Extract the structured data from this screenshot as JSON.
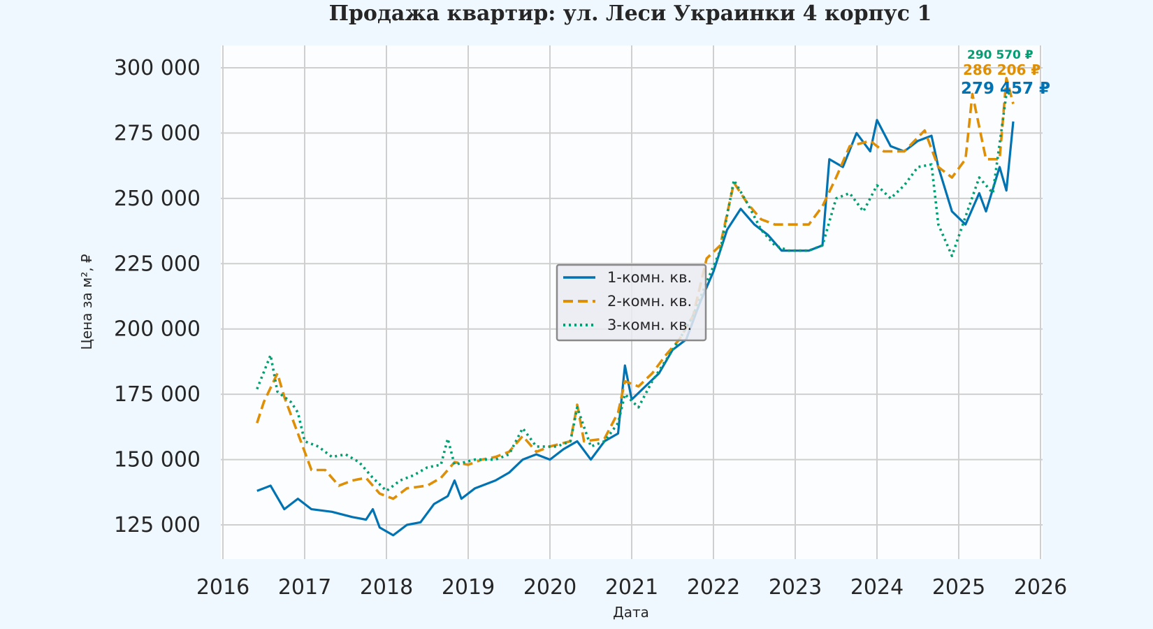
{
  "chart_data": {
    "type": "line",
    "title": "Продажа квартир: ул. Леси Украинки 4 корпус 1",
    "xlabel": "Дата",
    "ylabel": "Цена за м², ₽",
    "xlim": [
      "2016-01",
      "2026-01"
    ],
    "ylim": [
      113000,
      307000
    ],
    "x_ticks": [
      "2016",
      "2017",
      "2018",
      "2019",
      "2020",
      "2021",
      "2022",
      "2023",
      "2024",
      "2025",
      "2026"
    ],
    "y_ticks": [
      125000,
      150000,
      175000,
      200000,
      225000,
      250000,
      275000,
      300000
    ],
    "y_tick_labels": [
      "125 000",
      "150 000",
      "175 000",
      "200 000",
      "225 000",
      "250 000",
      "275 000",
      "300 000"
    ],
    "grid": true,
    "legend_position": "center",
    "series": [
      {
        "name": "1-комн. кв.",
        "color": "#0173b2",
        "style": "solid",
        "end_label": "279 457 ₽",
        "points": [
          [
            "2016-06",
            138000
          ],
          [
            "2016-08",
            140000
          ],
          [
            "2016-10",
            131000
          ],
          [
            "2016-12",
            135000
          ],
          [
            "2017-02",
            131000
          ],
          [
            "2017-05",
            130000
          ],
          [
            "2017-08",
            128000
          ],
          [
            "2017-10",
            127000
          ],
          [
            "2017-11",
            131000
          ],
          [
            "2017-12",
            124000
          ],
          [
            "2018-02",
            121000
          ],
          [
            "2018-04",
            125000
          ],
          [
            "2018-06",
            126000
          ],
          [
            "2018-08",
            133000
          ],
          [
            "2018-10",
            136000
          ],
          [
            "2018-11",
            142000
          ],
          [
            "2018-12",
            135000
          ],
          [
            "2019-02",
            139000
          ],
          [
            "2019-05",
            142000
          ],
          [
            "2019-07",
            145000
          ],
          [
            "2019-09",
            150000
          ],
          [
            "2019-11",
            152000
          ],
          [
            "2020-01",
            150000
          ],
          [
            "2020-03",
            154000
          ],
          [
            "2020-05",
            157000
          ],
          [
            "2020-07",
            150000
          ],
          [
            "2020-09",
            157000
          ],
          [
            "2020-11",
            160000
          ],
          [
            "2020-12",
            186000
          ],
          [
            "2021-01",
            173000
          ],
          [
            "2021-03",
            178000
          ],
          [
            "2021-05",
            183000
          ],
          [
            "2021-07",
            192000
          ],
          [
            "2021-09",
            196000
          ],
          [
            "2021-11",
            210000
          ],
          [
            "2022-01",
            222000
          ],
          [
            "2022-03",
            238000
          ],
          [
            "2022-05",
            246000
          ],
          [
            "2022-07",
            240000
          ],
          [
            "2022-09",
            236000
          ],
          [
            "2022-11",
            230000
          ],
          [
            "2023-01",
            230000
          ],
          [
            "2023-03",
            230000
          ],
          [
            "2023-05",
            232000
          ],
          [
            "2023-06",
            265000
          ],
          [
            "2023-08",
            262000
          ],
          [
            "2023-10",
            275000
          ],
          [
            "2023-12",
            268000
          ],
          [
            "2024-01",
            280000
          ],
          [
            "2024-03",
            270000
          ],
          [
            "2024-05",
            268000
          ],
          [
            "2024-07",
            272000
          ],
          [
            "2024-09",
            274000
          ],
          [
            "2024-10",
            262000
          ],
          [
            "2024-12",
            245000
          ],
          [
            "2025-02",
            240000
          ],
          [
            "2025-04",
            252000
          ],
          [
            "2025-05",
            245000
          ],
          [
            "2025-07",
            262000
          ],
          [
            "2025-08",
            253000
          ],
          [
            "2025-09",
            279457
          ]
        ]
      },
      {
        "name": "2-комн. кв.",
        "color": "#de8f05",
        "style": "dashed",
        "end_label": "286 206 ₽",
        "points": [
          [
            "2016-06",
            164000
          ],
          [
            "2016-07",
            172000
          ],
          [
            "2016-09",
            183000
          ],
          [
            "2016-10",
            174000
          ],
          [
            "2016-12",
            160000
          ],
          [
            "2017-02",
            146000
          ],
          [
            "2017-04",
            146000
          ],
          [
            "2017-06",
            140000
          ],
          [
            "2017-08",
            142000
          ],
          [
            "2017-10",
            143000
          ],
          [
            "2017-12",
            137000
          ],
          [
            "2018-02",
            135000
          ],
          [
            "2018-04",
            139000
          ],
          [
            "2018-07",
            140000
          ],
          [
            "2018-09",
            143000
          ],
          [
            "2018-11",
            149000
          ],
          [
            "2019-01",
            148000
          ],
          [
            "2019-03",
            150000
          ],
          [
            "2019-05",
            151000
          ],
          [
            "2019-07",
            153000
          ],
          [
            "2019-09",
            159000
          ],
          [
            "2019-11",
            153000
          ],
          [
            "2020-01",
            155000
          ],
          [
            "2020-04",
            157000
          ],
          [
            "2020-05",
            171000
          ],
          [
            "2020-06",
            157000
          ],
          [
            "2020-09",
            158000
          ],
          [
            "2020-11",
            168000
          ],
          [
            "2020-12",
            180000
          ],
          [
            "2021-02",
            178000
          ],
          [
            "2021-04",
            183000
          ],
          [
            "2021-06",
            190000
          ],
          [
            "2021-08",
            196000
          ],
          [
            "2021-10",
            205000
          ],
          [
            "2021-12",
            227000
          ],
          [
            "2022-02",
            232000
          ],
          [
            "2022-04",
            256000
          ],
          [
            "2022-06",
            248000
          ],
          [
            "2022-08",
            242000
          ],
          [
            "2022-10",
            240000
          ],
          [
            "2022-12",
            240000
          ],
          [
            "2023-03",
            240000
          ],
          [
            "2023-05",
            247000
          ],
          [
            "2023-07",
            258000
          ],
          [
            "2023-09",
            270000
          ],
          [
            "2023-12",
            272000
          ],
          [
            "2024-02",
            268000
          ],
          [
            "2024-05",
            268000
          ],
          [
            "2024-08",
            276000
          ],
          [
            "2024-10",
            262000
          ],
          [
            "2024-12",
            258000
          ],
          [
            "2025-02",
            265000
          ],
          [
            "2025-03",
            290000
          ],
          [
            "2025-05",
            265000
          ],
          [
            "2025-07",
            265000
          ],
          [
            "2025-08",
            296000
          ],
          [
            "2025-09",
            286206
          ]
        ]
      },
      {
        "name": "3-комн. кв.",
        "color": "#029e73",
        "style": "dotted",
        "end_label": "290 570 ₽",
        "points": [
          [
            "2016-06",
            177000
          ],
          [
            "2016-08",
            190000
          ],
          [
            "2016-09",
            176000
          ],
          [
            "2016-11",
            172000
          ],
          [
            "2016-12",
            168000
          ],
          [
            "2017-01",
            157000
          ],
          [
            "2017-03",
            155000
          ],
          [
            "2017-05",
            151000
          ],
          [
            "2017-07",
            152000
          ],
          [
            "2017-09",
            149000
          ],
          [
            "2017-11",
            143000
          ],
          [
            "2018-01",
            138000
          ],
          [
            "2018-03",
            142000
          ],
          [
            "2018-05",
            144000
          ],
          [
            "2018-07",
            147000
          ],
          [
            "2018-09",
            148000
          ],
          [
            "2018-10",
            158000
          ],
          [
            "2018-11",
            148000
          ],
          [
            "2019-02",
            150000
          ],
          [
            "2019-05",
            150000
          ],
          [
            "2019-07",
            152000
          ],
          [
            "2019-09",
            162000
          ],
          [
            "2019-11",
            155000
          ],
          [
            "2020-02",
            155000
          ],
          [
            "2020-04",
            157000
          ],
          [
            "2020-05",
            170000
          ],
          [
            "2020-07",
            155000
          ],
          [
            "2020-09",
            157000
          ],
          [
            "2020-11",
            164000
          ],
          [
            "2020-12",
            175000
          ],
          [
            "2021-02",
            170000
          ],
          [
            "2021-04",
            180000
          ],
          [
            "2021-06",
            188000
          ],
          [
            "2021-08",
            196000
          ],
          [
            "2021-10",
            205000
          ],
          [
            "2021-12",
            218000
          ],
          [
            "2022-02",
            230000
          ],
          [
            "2022-04",
            257000
          ],
          [
            "2022-06",
            248000
          ],
          [
            "2022-08",
            238000
          ],
          [
            "2022-10",
            232000
          ],
          [
            "2022-12",
            230000
          ],
          [
            "2023-03",
            230000
          ],
          [
            "2023-05",
            232000
          ],
          [
            "2023-07",
            250000
          ],
          [
            "2023-09",
            252000
          ],
          [
            "2023-11",
            245000
          ],
          [
            "2024-01",
            255000
          ],
          [
            "2024-03",
            250000
          ],
          [
            "2024-05",
            255000
          ],
          [
            "2024-07",
            262000
          ],
          [
            "2024-09",
            263000
          ],
          [
            "2024-10",
            240000
          ],
          [
            "2024-12",
            228000
          ],
          [
            "2025-02",
            243000
          ],
          [
            "2025-04",
            258000
          ],
          [
            "2025-06",
            252000
          ],
          [
            "2025-08",
            290000
          ],
          [
            "2025-09",
            290570
          ]
        ]
      }
    ]
  }
}
